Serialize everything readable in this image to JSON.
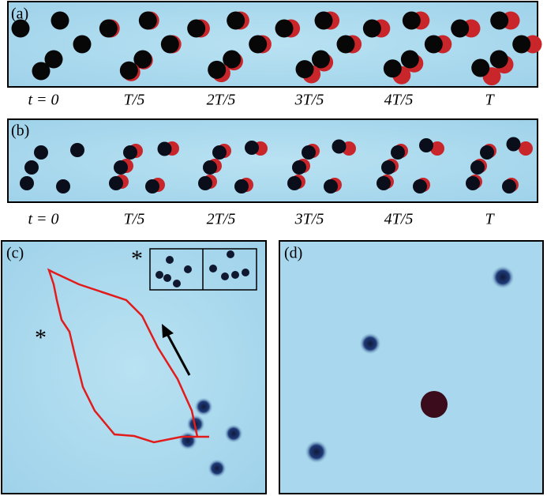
{
  "panel_a": {
    "label": "(a)",
    "frame_labels": [
      "t = 0",
      "T/5",
      "2T/5",
      "3T/5",
      "4T/5",
      "T"
    ]
  },
  "panel_b": {
    "label": "(b)",
    "frame_labels": [
      "t = 0",
      "T/5",
      "2T/5",
      "3T/5",
      "4T/5",
      "T"
    ]
  },
  "panel_c": {
    "label": "(c)",
    "markers": [
      "*",
      "*"
    ]
  },
  "panel_d": {
    "label": "(d)"
  }
}
